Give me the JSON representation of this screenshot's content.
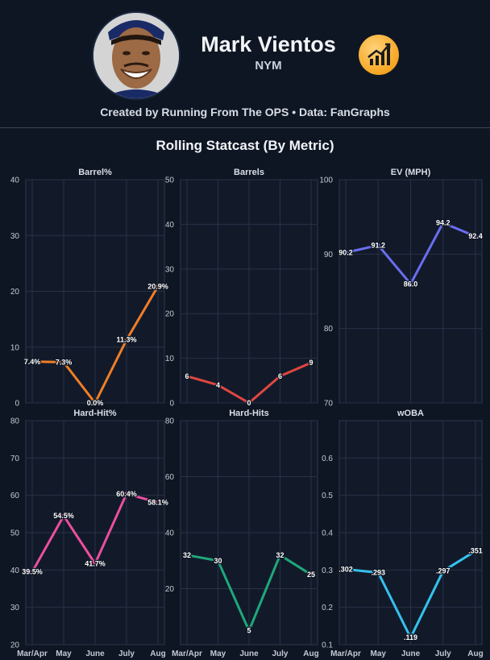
{
  "header": {
    "player_name": "Mark Vientos",
    "team": "NYM",
    "credit": "Created by Running From The OPS • Data: FanGraphs",
    "subtitle": "Rolling Statcast (By Metric)"
  },
  "icons": {
    "avatar": "player-headshot",
    "badge": "trend-chart-icon"
  },
  "chart_data": [
    {
      "type": "line",
      "title": "Barrel%",
      "color": "#f07e26",
      "categories": [
        "Mar/Apr",
        "May",
        "June",
        "July",
        "Aug"
      ],
      "values": [
        7.4,
        7.3,
        0.0,
        11.3,
        20.9
      ],
      "labels": [
        "7.4%",
        "7.3%",
        "0.0%",
        "11.3%",
        "20.9%"
      ],
      "ylim": [
        0,
        40
      ],
      "yticks": [
        0,
        10,
        20,
        30,
        40
      ],
      "ytick_labels": [
        "0",
        "10",
        "20",
        "30",
        "40"
      ]
    },
    {
      "type": "line",
      "title": "Barrels",
      "color": "#e0473f",
      "categories": [
        "Mar/Apr",
        "May",
        "June",
        "July",
        "Aug"
      ],
      "values": [
        6,
        4,
        0,
        6,
        9
      ],
      "labels": [
        "6",
        "4",
        "0",
        "6",
        "9"
      ],
      "ylim": [
        0,
        50
      ],
      "yticks": [
        0,
        10,
        20,
        30,
        40,
        50
      ],
      "ytick_labels": [
        "0",
        "10",
        "20",
        "30",
        "40",
        "50"
      ]
    },
    {
      "type": "line",
      "title": "EV (MPH)",
      "color": "#6a6ef0",
      "categories": [
        "Mar/Apr",
        "May",
        "June",
        "July",
        "Aug"
      ],
      "values": [
        90.2,
        91.2,
        86.0,
        94.2,
        92.4
      ],
      "labels": [
        "90.2",
        "91.2",
        "86.0",
        "94.2",
        "92.4"
      ],
      "ylim": [
        70,
        100
      ],
      "yticks": [
        70,
        80,
        90,
        100
      ],
      "ytick_labels": [
        "70",
        "80",
        "90",
        "100"
      ]
    },
    {
      "type": "line",
      "title": "Hard-Hit%",
      "color": "#ea4f9e",
      "categories": [
        "Mar/Apr",
        "May",
        "June",
        "July",
        "Aug"
      ],
      "values": [
        39.5,
        54.5,
        41.7,
        60.4,
        58.1
      ],
      "labels": [
        "39.5%",
        "54.5%",
        "41.7%",
        "60.4%",
        "58.1%"
      ],
      "ylim": [
        20,
        80
      ],
      "yticks": [
        20,
        30,
        40,
        50,
        60,
        70,
        80
      ],
      "ytick_labels": [
        "20",
        "30",
        "40",
        "50",
        "60",
        "70",
        "80"
      ]
    },
    {
      "type": "line",
      "title": "Hard-Hits",
      "color": "#1fa87a",
      "categories": [
        "Mar/Apr",
        "May",
        "June",
        "July",
        "Aug"
      ],
      "values": [
        32,
        30,
        5,
        32,
        25
      ],
      "labels": [
        "32",
        "30",
        "5",
        "32",
        "25"
      ],
      "ylim": [
        0,
        80
      ],
      "yticks": [
        20,
        40,
        60,
        80
      ],
      "ytick_labels": [
        "20",
        "40",
        "60",
        "80"
      ]
    },
    {
      "type": "line",
      "title": "wOBA",
      "color": "#35c1ee",
      "categories": [
        "Mar/Apr",
        "May",
        "June",
        "July",
        "Aug"
      ],
      "values": [
        0.302,
        0.293,
        0.119,
        0.297,
        0.351
      ],
      "labels": [
        ".302",
        ".293",
        ".119",
        ".297",
        ".351"
      ],
      "ylim": [
        0.1,
        0.7
      ],
      "yticks": [
        0.1,
        0.2,
        0.3,
        0.4,
        0.5,
        0.6
      ],
      "ytick_labels": [
        "0.1",
        "0.2",
        "0.3",
        "0.4",
        "0.5",
        "0.6"
      ]
    }
  ]
}
